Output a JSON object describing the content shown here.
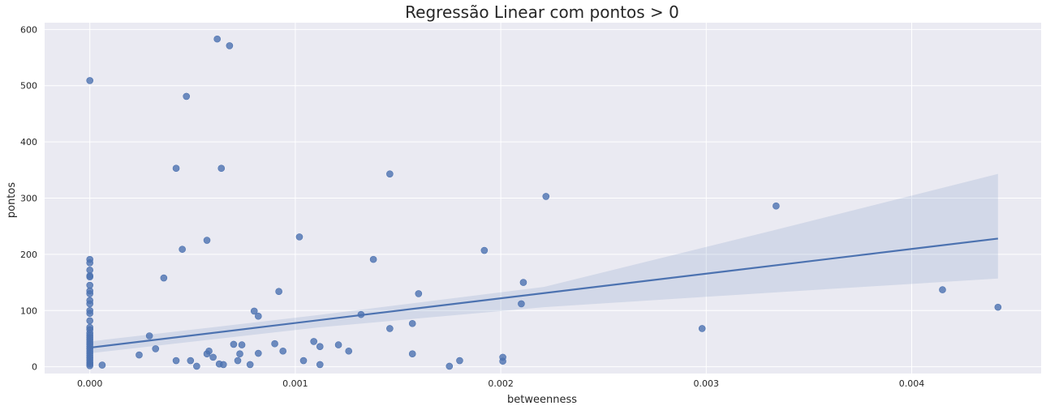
{
  "chart_data": {
    "type": "scatter",
    "title": "Regressão Linear com pontos > 0",
    "xlabel": "betweenness",
    "ylabel": "pontos",
    "xlim": [
      -0.00022,
      0.00463
    ],
    "ylim": [
      -12,
      612
    ],
    "xticks": [
      0.0,
      0.001,
      0.002,
      0.003,
      0.004
    ],
    "xtick_labels": [
      "0.000",
      "0.001",
      "0.002",
      "0.003",
      "0.004"
    ],
    "yticks": [
      0,
      100,
      200,
      300,
      400,
      500,
      600
    ],
    "ytick_labels": [
      "0",
      "100",
      "200",
      "300",
      "400",
      "500",
      "600"
    ],
    "grid": true,
    "colors": {
      "background": "#eaeaf2",
      "grid": "#ffffff",
      "points": "#4c72b0",
      "line": "#4c72b0",
      "band": "#4c72b0"
    },
    "series": [
      {
        "points": [
          [
            0.0,
            509
          ],
          [
            0.0,
            191
          ],
          [
            0.0,
            185
          ],
          [
            0.0,
            172
          ],
          [
            0.0,
            162
          ],
          [
            0.0,
            160
          ],
          [
            0.0,
            145
          ],
          [
            0.0,
            135
          ],
          [
            0.0,
            130
          ],
          [
            0.0,
            118
          ],
          [
            0.0,
            112
          ],
          [
            0.0,
            100
          ],
          [
            0.0,
            95
          ],
          [
            0.0,
            82
          ],
          [
            0.0,
            70
          ],
          [
            0.0,
            66
          ],
          [
            0.0,
            60
          ],
          [
            0.0,
            56
          ],
          [
            0.0,
            52
          ],
          [
            0.0,
            48
          ],
          [
            0.0,
            44
          ],
          [
            0.0,
            40
          ],
          [
            0.0,
            36
          ],
          [
            0.0,
            32
          ],
          [
            0.0,
            28
          ],
          [
            0.0,
            24
          ],
          [
            0.0,
            20
          ],
          [
            0.0,
            16
          ],
          [
            0.0,
            12
          ],
          [
            0.0,
            8
          ],
          [
            0.0,
            5
          ],
          [
            0.0,
            2
          ],
          [
            6e-05,
            3
          ],
          [
            0.00024,
            21
          ],
          [
            0.00029,
            55
          ],
          [
            0.00032,
            32
          ],
          [
            0.00036,
            158
          ],
          [
            0.00042,
            353
          ],
          [
            0.00042,
            11
          ],
          [
            0.00045,
            209
          ],
          [
            0.00047,
            481
          ],
          [
            0.00049,
            11
          ],
          [
            0.00052,
            1
          ],
          [
            0.00057,
            225
          ],
          [
            0.00057,
            23
          ],
          [
            0.00058,
            28
          ],
          [
            0.0006,
            17
          ],
          [
            0.00062,
            583
          ],
          [
            0.00063,
            5
          ],
          [
            0.00064,
            353
          ],
          [
            0.00065,
            4
          ],
          [
            0.00068,
            571
          ],
          [
            0.0007,
            40
          ],
          [
            0.00072,
            11
          ],
          [
            0.00073,
            23
          ],
          [
            0.00074,
            39
          ],
          [
            0.00078,
            4
          ],
          [
            0.0008,
            99
          ],
          [
            0.00082,
            24
          ],
          [
            0.00082,
            90
          ],
          [
            0.0009,
            41
          ],
          [
            0.00092,
            134
          ],
          [
            0.00094,
            28
          ],
          [
            0.00102,
            231
          ],
          [
            0.00104,
            11
          ],
          [
            0.00109,
            45
          ],
          [
            0.00112,
            36
          ],
          [
            0.00112,
            4
          ],
          [
            0.00121,
            39
          ],
          [
            0.00126,
            28
          ],
          [
            0.00132,
            93
          ],
          [
            0.00138,
            191
          ],
          [
            0.00146,
            343
          ],
          [
            0.00146,
            68
          ],
          [
            0.00157,
            77
          ],
          [
            0.00157,
            23
          ],
          [
            0.0016,
            130
          ],
          [
            0.00175,
            1
          ],
          [
            0.0018,
            11
          ],
          [
            0.00192,
            207
          ],
          [
            0.00201,
            17
          ],
          [
            0.00201,
            10
          ],
          [
            0.0021,
            112
          ],
          [
            0.00211,
            150
          ],
          [
            0.00222,
            303
          ],
          [
            0.00298,
            68
          ],
          [
            0.00334,
            286
          ],
          [
            0.00415,
            137
          ],
          [
            0.00442,
            106
          ]
        ]
      }
    ],
    "regression": {
      "x": [
        0.0,
        0.00442
      ],
      "y": [
        34,
        228
      ],
      "ci_x": [
        0.0,
        0.00111,
        0.00221,
        0.00332,
        0.00442
      ],
      "ci_lower": [
        24,
        70,
        106,
        132,
        157
      ],
      "ci_upper": [
        45,
        92,
        142,
        242,
        343
      ]
    }
  }
}
